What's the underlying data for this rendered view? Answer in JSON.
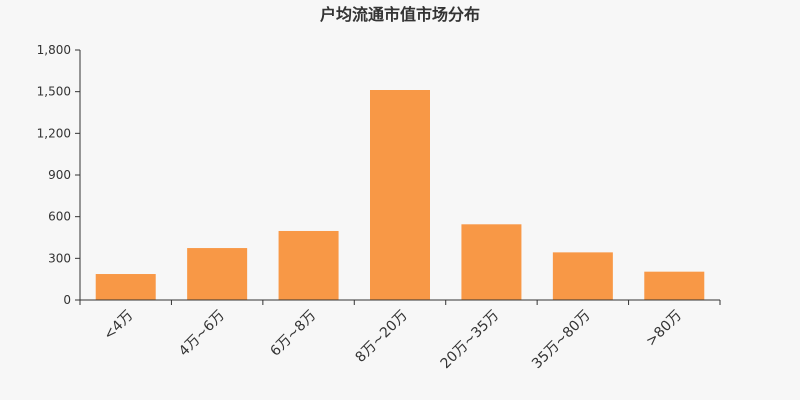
{
  "chart_data": {
    "type": "bar",
    "title": "户均流通市值市场分布",
    "categories": [
      "<4万",
      "4万~6万",
      "6万~8万",
      "8万~20万",
      "20万~35万",
      "35万~80万",
      ">80万"
    ],
    "values": [
      187,
      374,
      497,
      1512,
      545,
      343,
      204
    ],
    "xlabel": "",
    "ylabel": "",
    "ylim": [
      0,
      1800
    ],
    "yticks": [
      "0",
      "300",
      "600",
      "900",
      "1,200",
      "1,500",
      "1,800"
    ],
    "grid": false,
    "bar_color": "#f89846",
    "axis_color": "#333333"
  }
}
